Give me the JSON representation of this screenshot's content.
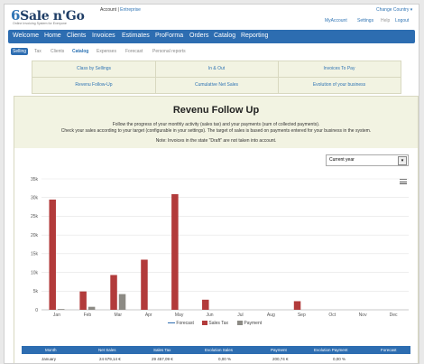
{
  "brand": {
    "logo_prefix": "6",
    "logo_text": "Sale n'Go",
    "tagline": "Online Invoicing System for Everyone"
  },
  "account": {
    "label": "Account",
    "separator": "|",
    "plan": "Entreprise"
  },
  "top_links": {
    "change_country": "Change Country ▾",
    "my_account": "MyAccount",
    "settings": "Settings",
    "help": "Help",
    "logout": "Logout"
  },
  "main_nav": [
    "Welcome",
    "Home",
    "Clients",
    "Invoices",
    "Estimates",
    "ProForma",
    "Orders",
    "Catalog",
    "Reporting"
  ],
  "sub_nav": [
    "Selling",
    "Tax",
    "Clients",
    "Catalog",
    "Expenses",
    "Forecast",
    "Personal reports"
  ],
  "reports": [
    [
      "Class by Sellings",
      "In & Out",
      "Invoices To Pay"
    ],
    [
      "Revenu Follow-Up",
      "Cumulative Net Sales",
      "Evolution of your business"
    ]
  ],
  "panel": {
    "title": "Revenu Follow Up",
    "desc1": "Follow the progress of your monthly activity (sales tax) and your payments (sum of collected payments).",
    "desc2": "Check your sales according to your target (configurable in your settings). The target of sales is based on payments entered for your business in the system.",
    "note": "Note: Invoices in the state \"Draft\" are not taken into account.",
    "period_select": "Current year"
  },
  "icons": {
    "menu": "hamburger-icon",
    "dropdown": "dropdown-arrow-icon"
  },
  "colors": {
    "nav": "#2d6db1",
    "sales": "#b23b3b",
    "payment": "#8c8a84",
    "forecast": "#2d6db1"
  },
  "chart_data": {
    "type": "bar",
    "categories": [
      "Jan",
      "Feb",
      "Mar",
      "Apr",
      "May",
      "Jun",
      "Jul",
      "Aug",
      "Sep",
      "Oct",
      "Nov",
      "Dec"
    ],
    "series": [
      {
        "name": "Forecast",
        "values": [
          0,
          0,
          0,
          0,
          0,
          0,
          0,
          0,
          0,
          0,
          0,
          0
        ]
      },
      {
        "name": "Sales Tax",
        "values": [
          29457,
          4900,
          9300,
          13400,
          30900,
          2700,
          0,
          0,
          2300,
          0,
          0,
          0
        ]
      },
      {
        "name": "Payment",
        "values": [
          200,
          800,
          4200,
          0,
          0,
          0,
          0,
          0,
          0,
          0,
          0,
          0
        ]
      }
    ],
    "yticks": [
      "0",
      "5k",
      "10k",
      "15k",
      "20k",
      "25k",
      "30k",
      "35k"
    ],
    "ylim": [
      0,
      35000
    ],
    "grid": true,
    "legend": "bottom"
  },
  "table": {
    "headers": [
      "Month",
      "Net Sales",
      "Sales Tax",
      "Evolution Sales",
      "Payment",
      "Evolution Payment",
      "Forecast"
    ],
    "rows": [
      [
        "January",
        "24 679,14 €",
        "29 457,09 €",
        "0,00 %",
        "200,74 €",
        "0,00 %",
        ""
      ]
    ]
  }
}
